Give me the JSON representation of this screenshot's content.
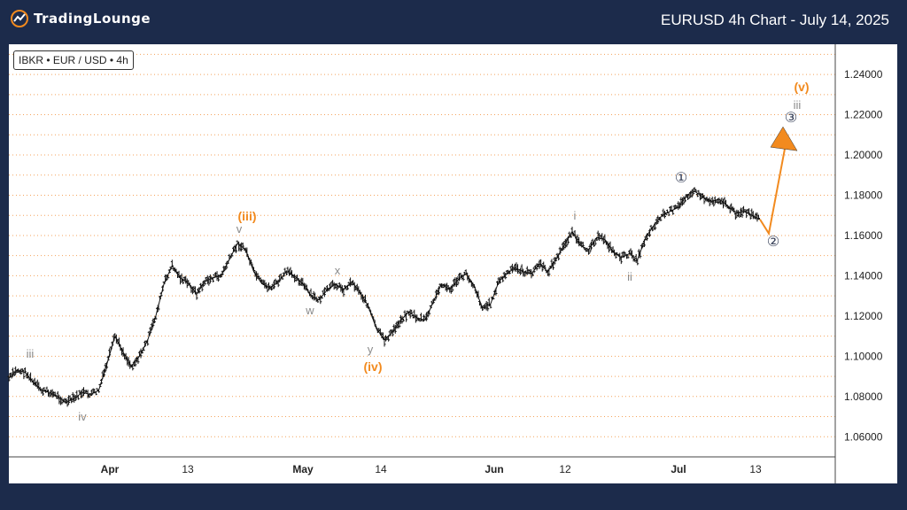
{
  "header": {
    "brand": "TradingLounge",
    "title": "EURUSD 4h Chart - July 14, 2025"
  },
  "instrument_label": "IBKR • EUR / USD • 4h",
  "colors": {
    "background": "#1c2b4b",
    "accent": "#f28a1e",
    "grid": "#f4a35c",
    "price": "#111111",
    "wave_gray": "#8a8a8a",
    "circle_label": "#333c55"
  },
  "chart_data": {
    "type": "candlestick",
    "title": "EURUSD 4h Chart - July 14, 2025",
    "x_axis": {
      "tick_labels": [
        "Apr",
        "13",
        "May",
        "14",
        "Jun",
        "12",
        "Jul",
        "13"
      ]
    },
    "y_axis": {
      "tick_labels": [
        "1.24000",
        "1.22000",
        "1.20000",
        "1.18000",
        "1.16000",
        "1.14000",
        "1.12000",
        "1.10000",
        "1.08000",
        "1.06000"
      ],
      "range": [
        1.05,
        1.255
      ]
    },
    "grid": "horizontal dotted",
    "price_path": [
      [
        "2025-03-17",
        1.089
      ],
      [
        "2025-03-19",
        1.093
      ],
      [
        "2025-03-21",
        1.092
      ],
      [
        "2025-03-23",
        1.087
      ],
      [
        "2025-03-25",
        1.083
      ],
      [
        "2025-03-27",
        1.082
      ],
      [
        "2025-03-29",
        1.08
      ],
      [
        "2025-04-01",
        1.077
      ],
      [
        "2025-04-03",
        1.079
      ],
      [
        "2025-04-05",
        1.082
      ],
      [
        "2025-04-07",
        1.081
      ],
      [
        "2025-04-08",
        1.083
      ],
      [
        "2025-04-09",
        1.096
      ],
      [
        "2025-04-10",
        1.11
      ],
      [
        "2025-04-11",
        1.102
      ],
      [
        "2025-04-13",
        1.095
      ],
      [
        "2025-04-14",
        1.1
      ],
      [
        "2025-04-15",
        1.108
      ],
      [
        "2025-04-17",
        1.12
      ],
      [
        "2025-04-18",
        1.136
      ],
      [
        "2025-04-19",
        1.145
      ],
      [
        "2025-04-20",
        1.139
      ],
      [
        "2025-04-22",
        1.136
      ],
      [
        "2025-04-24",
        1.131
      ],
      [
        "2025-04-26",
        1.137
      ],
      [
        "2025-04-28",
        1.139
      ],
      [
        "2025-04-30",
        1.14
      ],
      [
        "2025-05-01",
        1.148
      ],
      [
        "2025-05-02",
        1.156
      ],
      [
        "2025-05-03",
        1.153
      ],
      [
        "2025-05-05",
        1.142
      ],
      [
        "2025-05-07",
        1.136
      ],
      [
        "2025-05-09",
        1.134
      ],
      [
        "2025-05-11",
        1.137
      ],
      [
        "2025-05-13",
        1.142
      ],
      [
        "2025-05-15",
        1.14
      ],
      [
        "2025-05-17",
        1.136
      ],
      [
        "2025-05-19",
        1.13
      ],
      [
        "2025-05-21",
        1.128
      ],
      [
        "2025-05-23",
        1.133
      ],
      [
        "2025-05-25",
        1.136
      ],
      [
        "2025-05-27",
        1.133
      ],
      [
        "2025-05-29",
        1.137
      ],
      [
        "2025-05-31",
        1.132
      ],
      [
        "2025-06-02",
        1.125
      ],
      [
        "2025-06-04",
        1.114
      ],
      [
        "2025-06-05",
        1.108
      ],
      [
        "2025-06-06",
        1.112
      ],
      [
        "2025-06-08",
        1.118
      ],
      [
        "2025-06-10",
        1.122
      ],
      [
        "2025-06-12",
        1.119
      ],
      [
        "2025-06-14",
        1.118
      ],
      [
        "2025-06-16",
        1.127
      ],
      [
        "2025-06-18",
        1.136
      ],
      [
        "2025-06-20",
        1.133
      ],
      [
        "2025-06-22",
        1.138
      ],
      [
        "2025-06-24",
        1.141
      ],
      [
        "2025-06-26",
        1.135
      ],
      [
        "2025-06-28",
        1.124
      ],
      [
        "2025-06-30",
        1.126
      ],
      [
        "2025-07-02",
        1.137
      ],
      [
        "2025-07-04",
        1.141
      ],
      [
        "2025-07-06",
        1.144
      ],
      [
        "2025-07-08",
        1.142
      ],
      [
        "2025-07-10",
        1.141
      ],
      [
        "2025-07-12",
        1.146
      ],
      [
        "2025-07-14",
        1.142
      ],
      [
        "2025-07-16",
        1.148
      ],
      [
        "2025-07-18",
        1.155
      ],
      [
        "2025-07-19",
        1.162
      ],
      [
        "2025-07-20",
        1.155
      ],
      [
        "2025-07-21",
        1.153
      ],
      [
        "2025-07-23",
        1.159
      ],
      [
        "2025-07-24",
        1.158
      ],
      [
        "2025-07-26",
        1.152
      ],
      [
        "2025-07-28",
        1.149
      ],
      [
        "2025-07-30",
        1.151
      ],
      [
        "2025-08-01",
        1.148
      ],
      [
        "2025-08-02",
        1.159
      ],
      [
        "2025-08-04",
        1.165
      ],
      [
        "2025-08-06",
        1.17
      ],
      [
        "2025-08-08",
        1.172
      ],
      [
        "2025-08-10",
        1.174
      ],
      [
        "2025-08-12",
        1.18
      ],
      [
        "2025-08-14",
        1.182
      ],
      [
        "2025-08-16",
        1.179
      ],
      [
        "2025-08-18",
        1.177
      ],
      [
        "2025-08-20",
        1.178
      ],
      [
        "2025-08-22",
        1.175
      ],
      [
        "2025-08-24",
        1.171
      ],
      [
        "2025-08-26",
        1.172
      ],
      [
        "2025-08-28",
        1.17
      ],
      [
        "2025-08-30",
        1.168
      ]
    ],
    "projection": [
      [
        "2025-09-02",
        1.161
      ],
      [
        "2025-09-07",
        1.203
      ]
    ],
    "wave_labels": [
      {
        "text": "iii",
        "date": "2025-03-19",
        "price": 1.099,
        "color": "gray"
      },
      {
        "text": "iv",
        "date": "2025-04-01",
        "price": 1.071,
        "color": "gray"
      },
      {
        "text": "(iii)",
        "date": "2025-05-02",
        "price": 1.168,
        "color": "orange"
      },
      {
        "text": "v",
        "date": "2025-05-02",
        "price": 1.161,
        "color": "gray"
      },
      {
        "text": "w",
        "date": "2025-05-24",
        "price": 1.121,
        "color": "gray"
      },
      {
        "text": "x",
        "date": "2025-05-30",
        "price": 1.141,
        "color": "gray"
      },
      {
        "text": "y",
        "date": "2025-06-05",
        "price": 1.102,
        "color": "gray"
      },
      {
        "text": "(iv)",
        "date": "2025-06-05",
        "price": 1.093,
        "color": "orange"
      },
      {
        "text": "i",
        "date": "2025-07-19",
        "price": 1.168,
        "color": "gray"
      },
      {
        "text": "ii",
        "date": "2025-07-31",
        "price": 1.14,
        "color": "gray"
      },
      {
        "text": "①",
        "date": "2025-08-14",
        "price": 1.186,
        "color": "circle"
      },
      {
        "text": "②",
        "date": "2025-09-03",
        "price": 1.155,
        "color": "circle"
      },
      {
        "text": "③",
        "date": "2025-09-08",
        "price": 1.217,
        "color": "circle"
      },
      {
        "text": "iii",
        "date": "2025-09-09",
        "price": 1.225,
        "color": "gray"
      },
      {
        "text": "(v)",
        "date": "2025-09-09",
        "price": 1.235,
        "color": "orange"
      }
    ]
  }
}
